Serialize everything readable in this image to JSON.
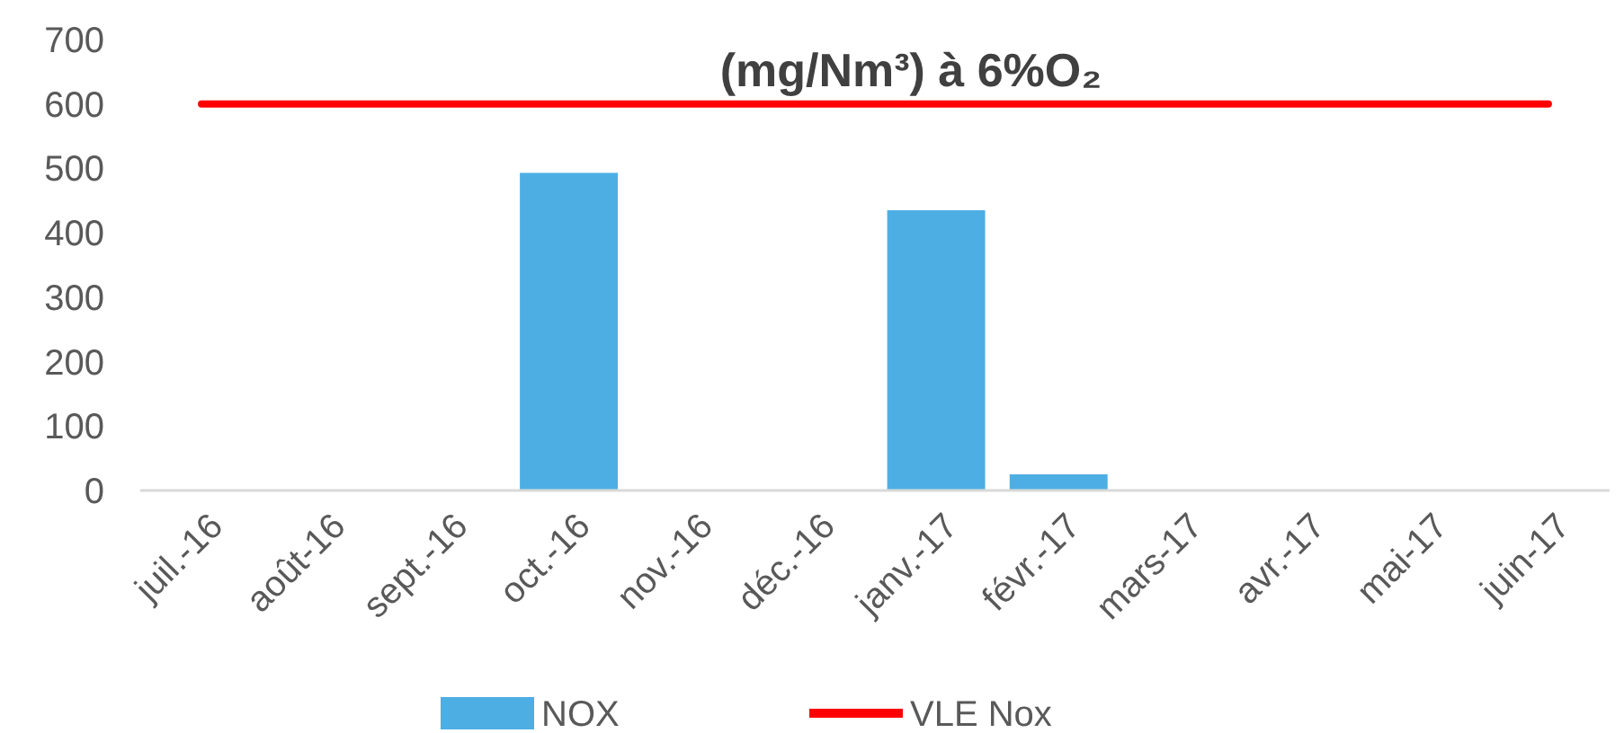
{
  "chart_data": {
    "type": "bar",
    "title": "(mg/Nm³) à 6%O₂",
    "categories": [
      "juil.-16",
      "août-16",
      "sept.-16",
      "oct.-16",
      "nov.-16",
      "déc.-16",
      "janv.-17",
      "févr.-17",
      "mars-17",
      "avr.-17",
      "mai-17",
      "juin-17"
    ],
    "series": [
      {
        "name": "NOX",
        "color": "#4daee3",
        "values": [
          null,
          null,
          null,
          493,
          null,
          null,
          435,
          25,
          null,
          null,
          null,
          null
        ]
      },
      {
        "name": "VLE Nox",
        "color": "#ff0000",
        "type": "line",
        "values": [
          600,
          600,
          600,
          600,
          600,
          600,
          600,
          600,
          600,
          600,
          600,
          600
        ]
      }
    ],
    "ylim": [
      0,
      700
    ],
    "yticks": [
      0,
      100,
      200,
      300,
      400,
      500,
      600,
      700
    ],
    "grid": false,
    "legend": "bottom"
  }
}
